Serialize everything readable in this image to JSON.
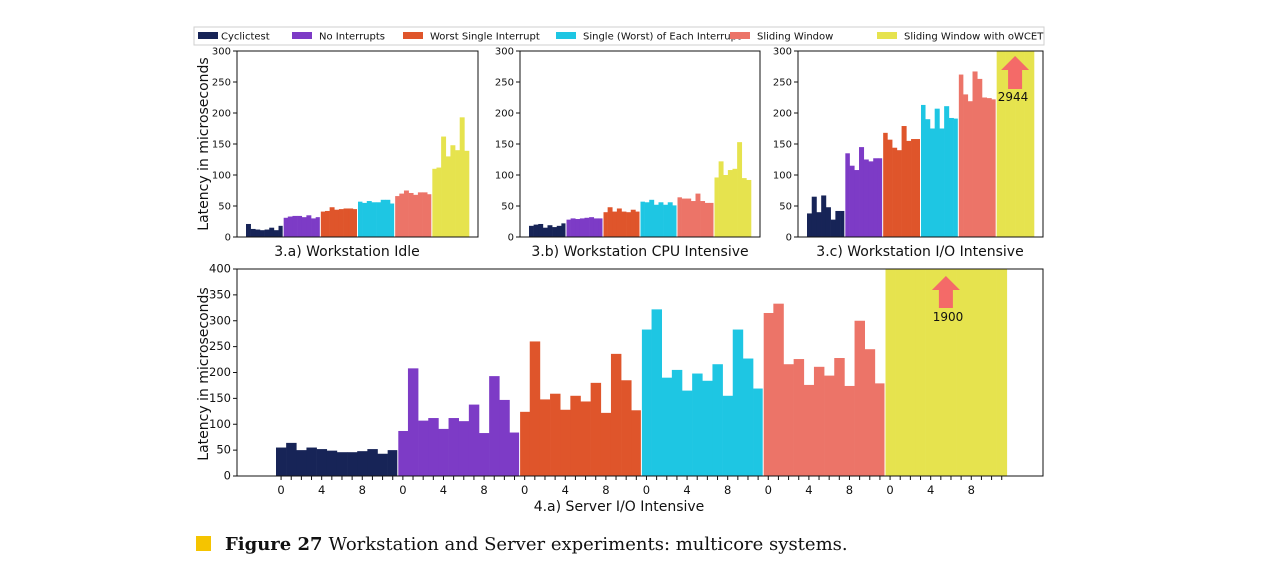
{
  "legend": [
    {
      "name": "Cyclictest",
      "color": "#172457"
    },
    {
      "name": "No Interrupts",
      "color": "#7d3bc6"
    },
    {
      "name": "Worst Single Interrupt",
      "color": "#df552b"
    },
    {
      "name": "Single (Worst) of Each Interrupt",
      "color": "#1ec6e3"
    },
    {
      "name": "Sliding Window",
      "color": "#ec7468"
    },
    {
      "name": "Sliding Window with oWCET",
      "color": "#e6e34e"
    }
  ],
  "caption": {
    "label": "Figure 27",
    "text": "Workstation and Server experiments: multicore systems."
  },
  "chart_data": [
    {
      "type": "bar",
      "title": "3.a) Workstation Idle",
      "ylabel": "Latency in microseconds",
      "ylim": [
        0,
        300
      ],
      "yticks": [
        0,
        50,
        100,
        150,
        200,
        250,
        300
      ],
      "series": [
        {
          "name": "Cyclictest",
          "values": [
            21,
            13,
            12,
            11,
            12,
            15,
            11,
            18
          ]
        },
        {
          "name": "No Interrupts",
          "values": [
            31,
            33,
            34,
            34,
            32,
            35,
            30,
            32
          ]
        },
        {
          "name": "Worst Single Interrupt",
          "values": [
            41,
            42,
            48,
            44,
            45,
            46,
            46,
            45
          ]
        },
        {
          "name": "Single (Worst) of Each Interrupt",
          "values": [
            57,
            55,
            58,
            56,
            56,
            60,
            60,
            54
          ]
        },
        {
          "name": "Sliding Window",
          "values": [
            66,
            70,
            75,
            71,
            68,
            72,
            72,
            69
          ]
        },
        {
          "name": "Sliding Window with oWCET",
          "values": [
            110,
            112,
            162,
            130,
            148,
            140,
            193,
            139
          ]
        }
      ]
    },
    {
      "type": "bar",
      "title": "3.b) Workstation CPU Intensive",
      "ylim": [
        0,
        300
      ],
      "yticks": [
        0,
        50,
        100,
        150,
        200,
        250,
        300
      ],
      "series": [
        {
          "name": "Cyclictest",
          "values": [
            18,
            20,
            21,
            15,
            19,
            16,
            18,
            22
          ]
        },
        {
          "name": "No Interrupts",
          "values": [
            28,
            30,
            29,
            30,
            31,
            32,
            30,
            30
          ]
        },
        {
          "name": "Worst Single Interrupt",
          "values": [
            40,
            48,
            41,
            46,
            41,
            40,
            44,
            41
          ]
        },
        {
          "name": "Single (Worst) of Each Interrupt",
          "values": [
            57,
            56,
            60,
            52,
            56,
            52,
            56,
            51
          ]
        },
        {
          "name": "Sliding Window",
          "values": [
            64,
            62,
            62,
            58,
            70,
            58,
            55,
            55
          ]
        },
        {
          "name": "Sliding Window with oWCET",
          "values": [
            96,
            122,
            100,
            108,
            110,
            153,
            95,
            92
          ]
        }
      ]
    },
    {
      "type": "bar",
      "title": "3.c) Workstation I/O Intensive",
      "ylim": [
        0,
        300
      ],
      "yticks": [
        0,
        50,
        100,
        150,
        200,
        250,
        300
      ],
      "annotation": {
        "text": "2944",
        "series": "Sliding Window with oWCET",
        "value": 2944
      },
      "series": [
        {
          "name": "Cyclictest",
          "values": [
            38,
            65,
            40,
            67,
            48,
            28,
            42,
            42
          ]
        },
        {
          "name": "No Interrupts",
          "values": [
            135,
            115,
            108,
            145,
            125,
            122,
            127,
            127
          ]
        },
        {
          "name": "Worst Single Interrupt",
          "values": [
            168,
            157,
            144,
            140,
            179,
            155,
            158,
            158
          ]
        },
        {
          "name": "Single (Worst) of Each Interrupt",
          "values": [
            213,
            190,
            175,
            207,
            175,
            211,
            192,
            191
          ]
        },
        {
          "name": "Sliding Window",
          "values": [
            262,
            230,
            219,
            267,
            255,
            225,
            224,
            222
          ]
        },
        {
          "name": "Sliding Window with oWCET",
          "values": [
            2944,
            2944,
            2944,
            2944,
            2944,
            2944,
            2944,
            2944
          ]
        }
      ]
    },
    {
      "type": "bar",
      "title": "4.a) Server I/O Intensive",
      "ylabel": "Latency in microseconds",
      "ylim": [
        0,
        400
      ],
      "yticks": [
        0,
        50,
        100,
        150,
        200,
        250,
        300,
        350,
        400
      ],
      "xticks": [
        "0",
        "4",
        "8"
      ],
      "annotation": {
        "text": "1900",
        "series": "Sliding Window with oWCET",
        "value": 1900
      },
      "series": [
        {
          "name": "Cyclictest",
          "values": [
            55,
            64,
            50,
            55,
            52,
            49,
            46,
            46,
            48,
            52,
            43,
            50
          ]
        },
        {
          "name": "No Interrupts",
          "values": [
            87,
            208,
            107,
            112,
            91,
            112,
            106,
            138,
            83,
            193,
            147,
            84
          ]
        },
        {
          "name": "Worst Single Interrupt",
          "values": [
            124,
            260,
            148,
            159,
            128,
            155,
            144,
            180,
            122,
            236,
            185,
            127
          ]
        },
        {
          "name": "Single (Worst) of Each Interrupt",
          "values": [
            283,
            322,
            190,
            205,
            165,
            198,
            184,
            216,
            155,
            283,
            227,
            169
          ]
        },
        {
          "name": "Sliding Window",
          "values": [
            315,
            333,
            216,
            226,
            176,
            211,
            194,
            228,
            174,
            300,
            245,
            179
          ]
        },
        {
          "name": "Sliding Window with oWCET",
          "values": [
            1900,
            1900,
            1900,
            1900,
            1900,
            1900,
            1900,
            1900,
            1900,
            1900,
            1900,
            1900
          ]
        }
      ]
    }
  ]
}
